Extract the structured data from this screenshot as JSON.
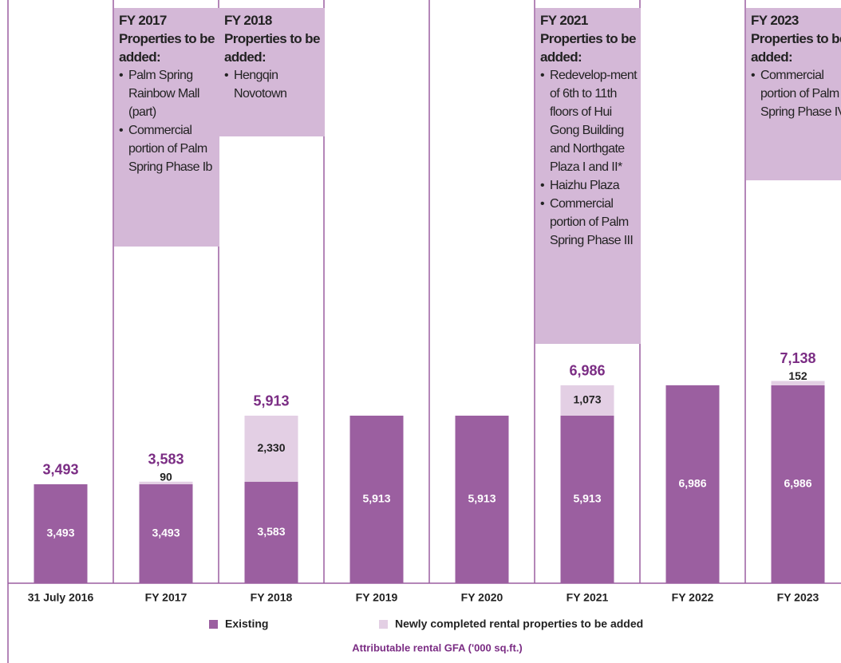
{
  "chart_data": {
    "type": "stacked_bar",
    "categories": [
      "31 July 2016",
      "FY 2017",
      "FY 2018",
      "FY 2019",
      "FY 2020",
      "FY 2021",
      "FY 2022",
      "FY 2023"
    ],
    "series": [
      {
        "name": "Existing",
        "color": "#9b5fa0",
        "values": [
          3493,
          3493,
          3583,
          5913,
          5913,
          5913,
          6986,
          6986
        ],
        "value_labels": [
          "3,493",
          "3,493",
          "3,583",
          "5,913",
          "5,913",
          "5,913",
          "6,986",
          "6,986"
        ]
      },
      {
        "name": "Newly completed rental properties to be added",
        "color": "#e3cfe4",
        "values": [
          null,
          90,
          2330,
          null,
          null,
          1073,
          null,
          152
        ],
        "value_labels": [
          null,
          "90",
          "2,330",
          null,
          null,
          "1,073",
          null,
          "152"
        ]
      }
    ],
    "totals": {
      "values": [
        3493,
        3583,
        5913,
        null,
        null,
        6986,
        null,
        7138
      ],
      "value_labels": [
        "3,493",
        "3,583",
        "5,913",
        null,
        null,
        "6,986",
        null,
        "7,138"
      ],
      "color": "#7b2d84"
    },
    "ylim": [
      0,
      20300
    ],
    "axis_label": "Attributable rental GFA ('000 sq.ft.)",
    "annotations": [
      {
        "heading": "FY 2017",
        "subheading": "Properties to be added:",
        "items": [
          "Palm Spring Rainbow Mall (part)",
          "Commercial portion of Palm Spring Phase Ib"
        ]
      },
      {
        "heading": "FY 2018",
        "subheading": "Properties to be added:",
        "items": [
          "Hengqin Novotown"
        ]
      },
      {
        "heading": "FY 2021",
        "subheading": "Properties to be added:",
        "items": [
          "Redevelop-ment of 6th to 11th floors of Hui Gong Building and Northgate Plaza I and II*",
          "Haizhu Plaza",
          "Commercial portion of Palm Spring Phase III"
        ]
      },
      {
        "heading": "FY 2023",
        "subheading": "Properties to be added:",
        "items": [
          "Commercial portion of Palm Spring Phase IV"
        ]
      }
    ]
  }
}
